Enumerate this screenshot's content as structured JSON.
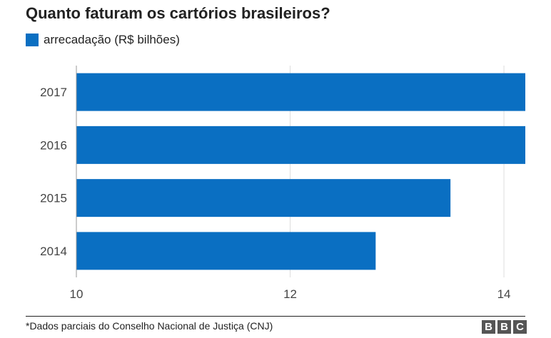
{
  "title": "Quanto faturam os cartórios brasileiros?",
  "legend": {
    "label": "arrecadação (R$ bilhões)",
    "color": "#0a6fc2"
  },
  "chart_data": {
    "type": "bar",
    "orientation": "horizontal",
    "title": "Quanto faturam os cartórios brasileiros?",
    "categories": [
      "2017",
      "2016",
      "2015",
      "2014"
    ],
    "series": [
      {
        "name": "arrecadação (R$ bilhões)",
        "values": [
          14.2,
          14.2,
          13.5,
          12.8
        ],
        "color": "#0a6fc2"
      }
    ],
    "xlim": [
      10,
      14.2
    ],
    "xticks": [
      10,
      12,
      14
    ],
    "grid": true,
    "legend_position": "top-left"
  },
  "footnote": "*Dados parciais do Conselho Nacional de Justiça (CNJ)",
  "logo": [
    "B",
    "B",
    "C"
  ]
}
